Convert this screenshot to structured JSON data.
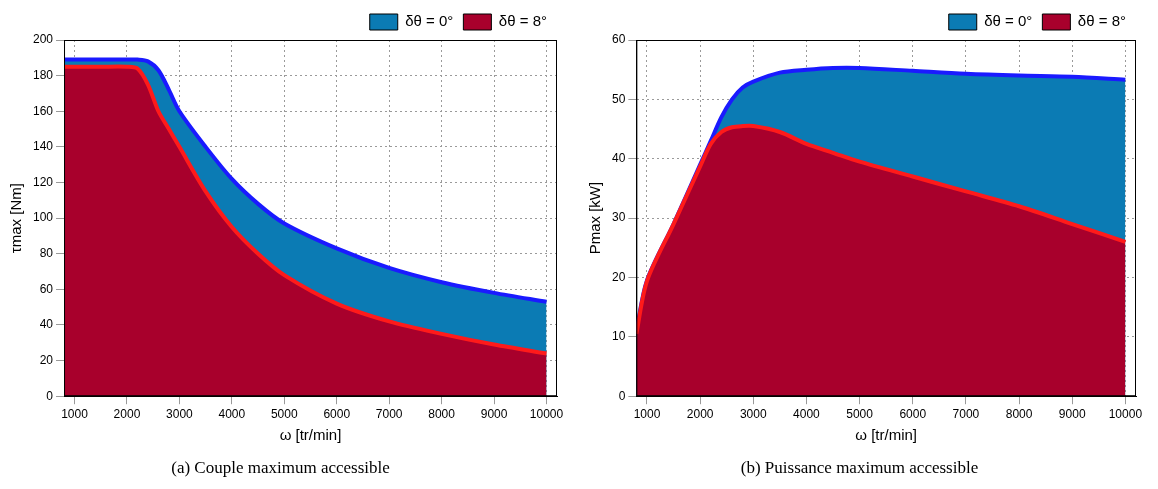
{
  "chart_data": [
    {
      "type": "area",
      "title": "(a) Couple maximum accessible",
      "x_label": "ω [tr/min]",
      "y_label": "τmax [Nm]",
      "x": [
        800,
        1000,
        1500,
        2000,
        2200,
        2400,
        2600,
        2800,
        3000,
        3500,
        4000,
        4500,
        5000,
        6000,
        7000,
        8000,
        9000,
        10000
      ],
      "series": [
        {
          "name": "δθ = 0°",
          "color": "#0b7bb4",
          "values": [
            189,
            189,
            189,
            189,
            189,
            188,
            183,
            172,
            160,
            140,
            122,
            108,
            97,
            83,
            72,
            64,
            58,
            53
          ]
        },
        {
          "name": "δθ = 8°",
          "color": "#a8002c",
          "values": [
            185,
            185,
            185,
            185,
            184,
            175,
            160,
            150,
            140,
            115,
            95,
            80,
            68,
            52,
            42,
            35,
            29,
            24
          ]
        }
      ],
      "xlim": [
        800,
        10200
      ],
      "xticks": [
        1000,
        2000,
        3000,
        4000,
        5000,
        6000,
        7000,
        8000,
        9000,
        10000
      ],
      "ylim": [
        0,
        200
      ],
      "yticks": [
        0,
        20,
        40,
        60,
        80,
        100,
        120,
        140,
        160,
        180,
        200
      ],
      "grid": true,
      "legend": "upper right"
    },
    {
      "type": "area",
      "title": "(b) Puissance maximum accessible",
      "x_label": "ω [tr/min]",
      "y_label": "Pmax [kW]",
      "x": [
        800,
        1000,
        1500,
        2000,
        2200,
        2400,
        2600,
        2800,
        3000,
        3500,
        4000,
        4500,
        5000,
        6000,
        7000,
        8000,
        9000,
        10000
      ],
      "series": [
        {
          "name": "δθ = 0°",
          "color": "#0b7bb4",
          "values": [
            11,
            19.5,
            29,
            39,
            43,
            47,
            50,
            52,
            53,
            54.5,
            55,
            55.3,
            55.3,
            54.8,
            54.3,
            54,
            53.8,
            53.3
          ]
        },
        {
          "name": "δθ = 8°",
          "color": "#a8002c",
          "values": [
            10.5,
            19.4,
            29,
            38.7,
            42.5,
            44.5,
            45.3,
            45.5,
            45.5,
            44.5,
            42.5,
            41,
            39.5,
            37,
            34.5,
            32,
            29,
            26
          ]
        }
      ],
      "xlim": [
        800,
        10200
      ],
      "xticks": [
        1000,
        2000,
        3000,
        4000,
        5000,
        6000,
        7000,
        8000,
        9000,
        10000
      ],
      "ylim": [
        0,
        60
      ],
      "yticks": [
        0,
        10,
        20,
        30,
        40,
        50,
        60
      ],
      "grid": true,
      "legend": "upper right"
    }
  ]
}
